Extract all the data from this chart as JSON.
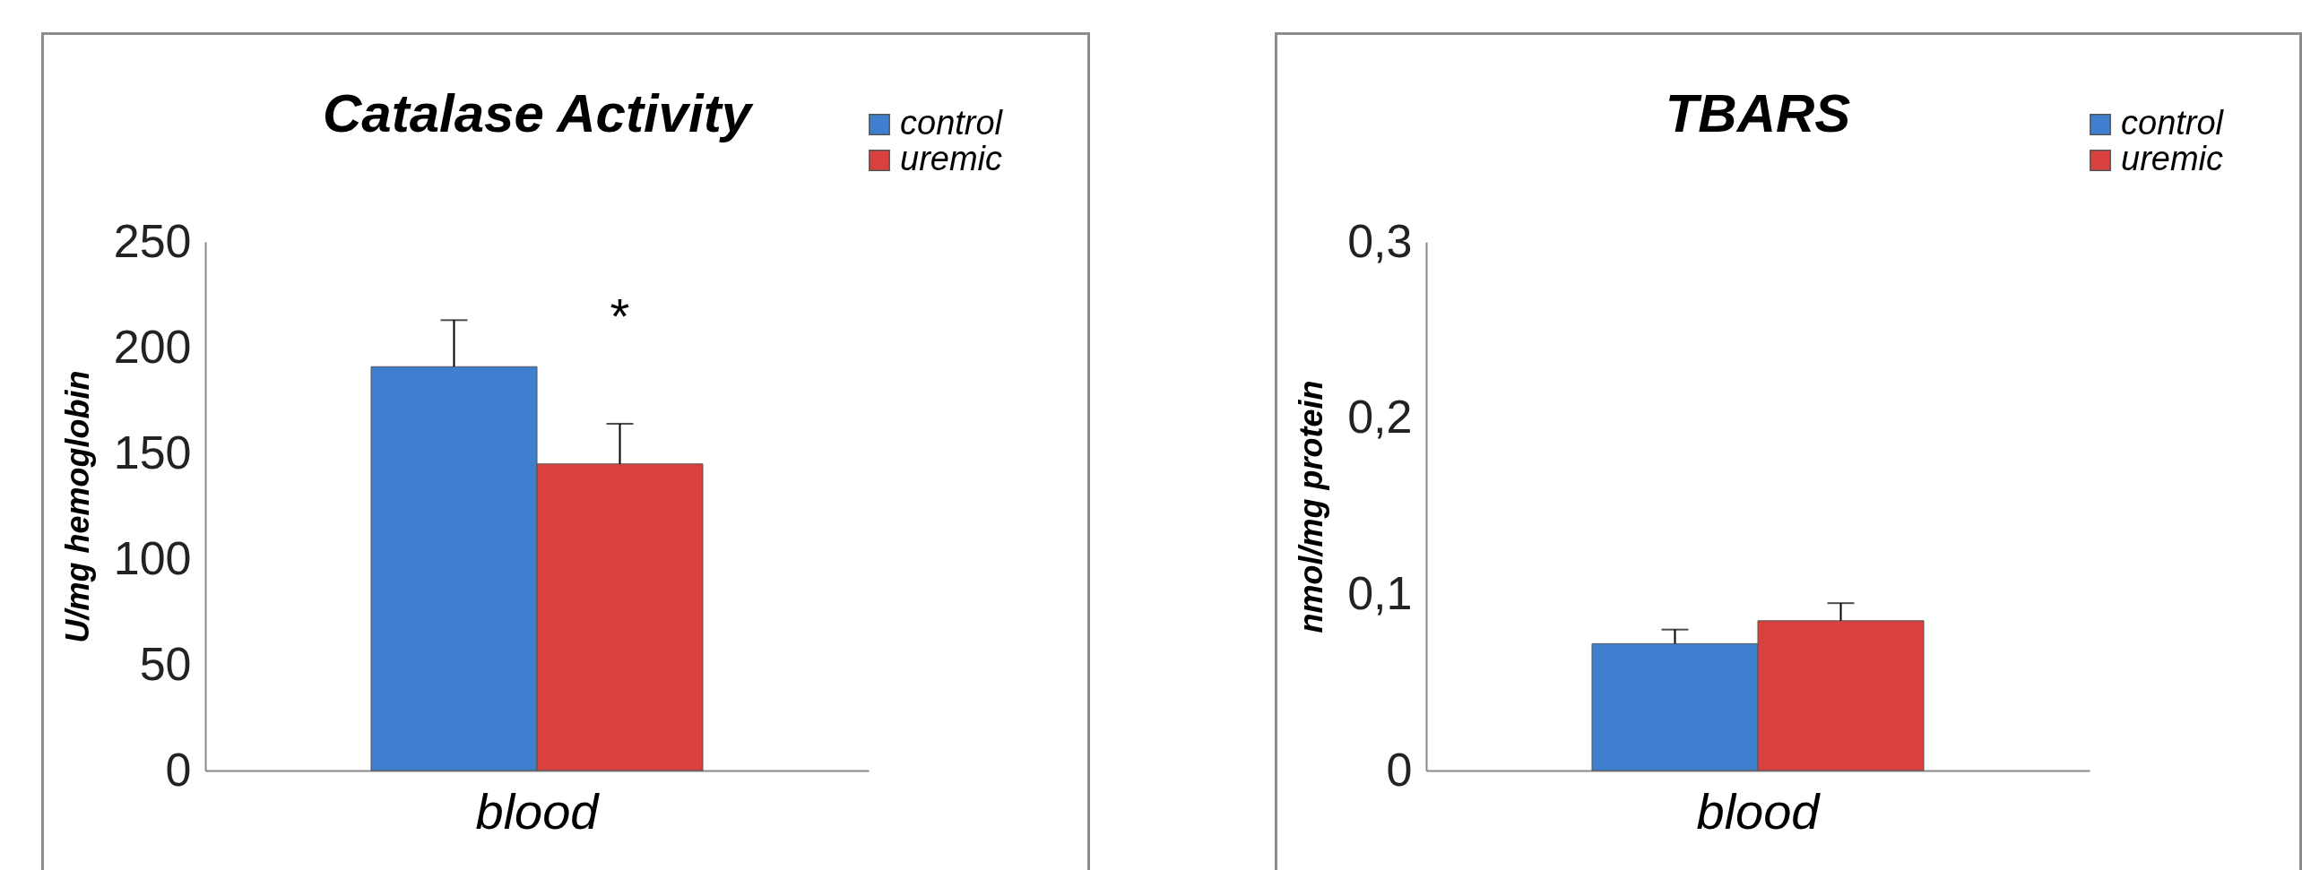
{
  "chart_data": [
    {
      "type": "bar",
      "title": "Catalase Activity",
      "ylabel": "U/mg hemoglobin",
      "categories": [
        "blood"
      ],
      "ylim": [
        0,
        250
      ],
      "yticks": [
        0,
        50,
        100,
        150,
        200,
        250
      ],
      "grid": false,
      "legend": "top right",
      "series": [
        {
          "name": "control",
          "color": "#3f7fd0",
          "values": [
            191
          ],
          "errors": [
            [
              191,
              213
            ]
          ]
        },
        {
          "name": "uremic",
          "color": "#d9413f",
          "values": [
            145
          ],
          "errors": [
            [
              145,
              164
            ]
          ]
        }
      ],
      "annotations": [
        "*"
      ]
    },
    {
      "type": "bar",
      "title": "TBARS",
      "ylabel": "nmol/mg protein",
      "categories": [
        "blood"
      ],
      "ylim": [
        0,
        0.3
      ],
      "yticks": [
        {
          "value": 0,
          "label": "0"
        },
        {
          "value": 0.1,
          "label": "0,1"
        },
        {
          "value": 0.2,
          "label": "0,2"
        },
        {
          "value": 0.3,
          "label": "0,3"
        }
      ],
      "grid": false,
      "legend": "top right",
      "series": [
        {
          "name": "control",
          "color": "#3f7fd0",
          "values": [
            0.072
          ],
          "errors": [
            [
              0.072,
              0.08
            ]
          ]
        },
        {
          "name": "uremic",
          "color": "#d9413f",
          "values": [
            0.085
          ],
          "errors": [
            [
              0.085,
              0.095
            ]
          ]
        }
      ]
    }
  ]
}
